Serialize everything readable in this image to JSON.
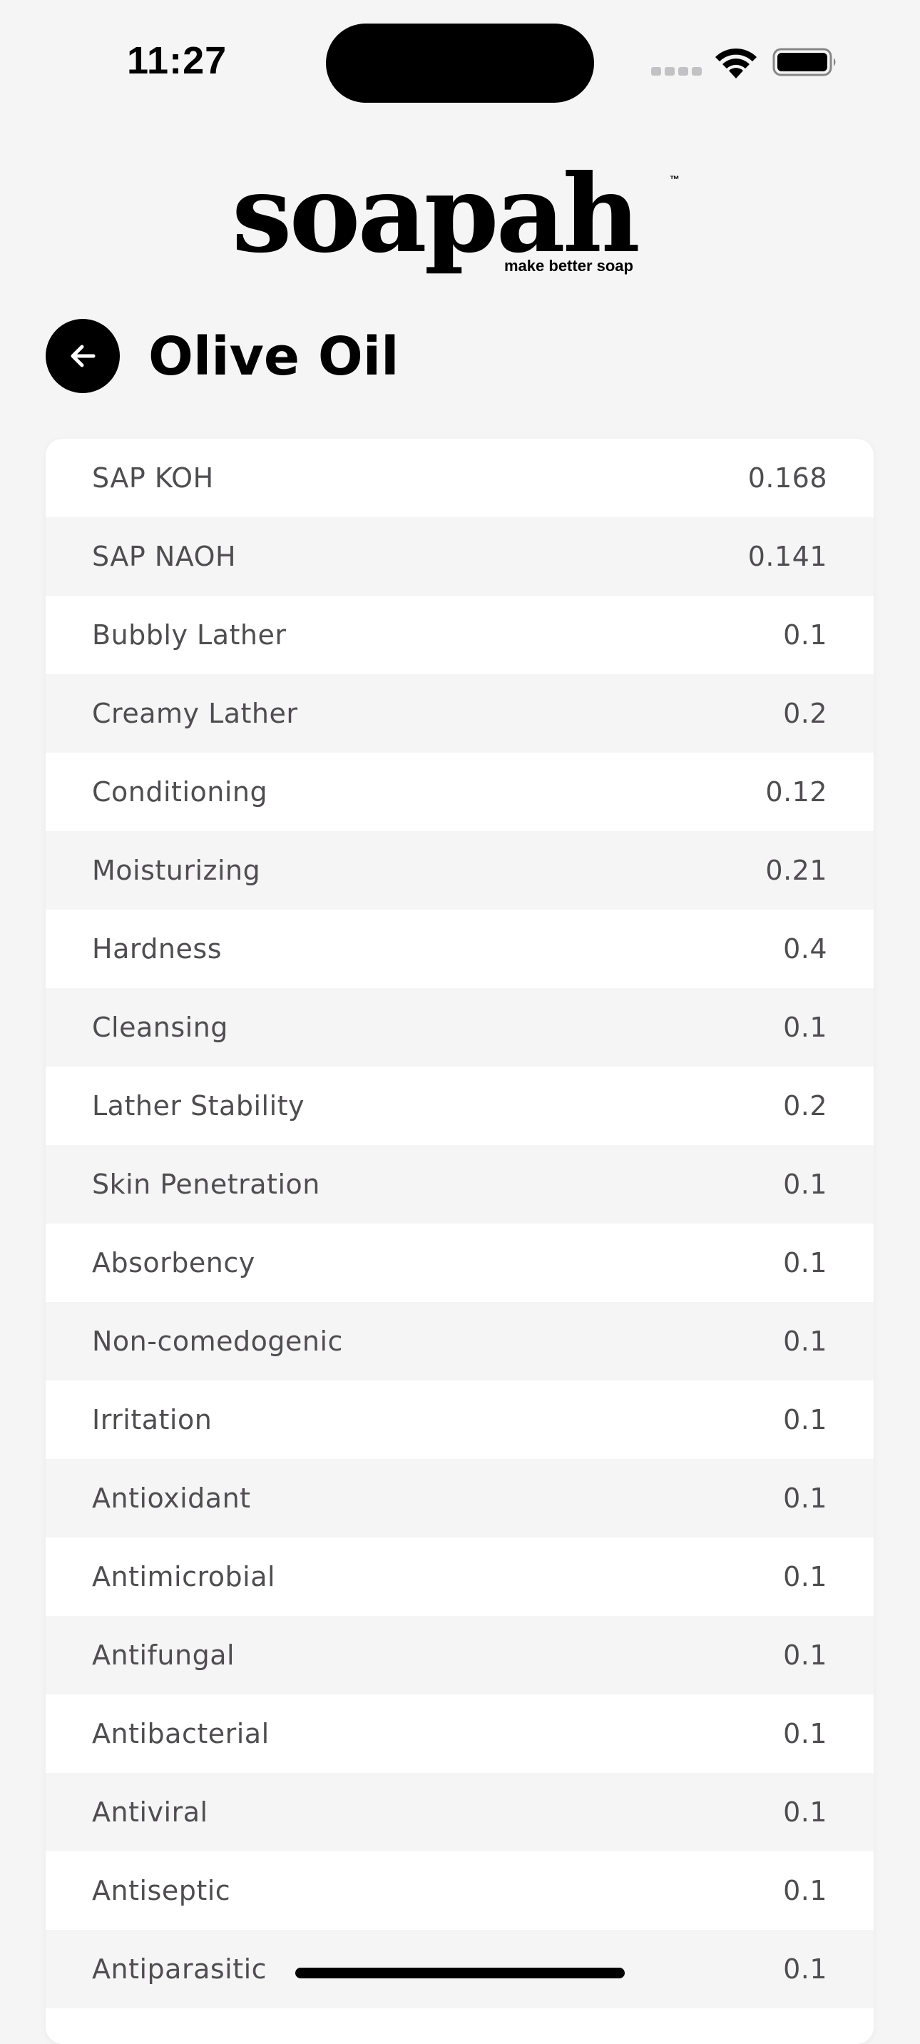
{
  "status_bar": {
    "time": "11:27"
  },
  "logo": {
    "wordmark": "soapah",
    "trademark": "™",
    "tagline": "make better soap"
  },
  "header": {
    "title": "Olive Oil",
    "back_icon": "arrow-left-icon"
  },
  "properties": [
    {
      "label": "SAP KOH",
      "value": "0.168"
    },
    {
      "label": "SAP NAOH",
      "value": "0.141"
    },
    {
      "label": "Bubbly Lather",
      "value": "0.1"
    },
    {
      "label": "Creamy Lather",
      "value": "0.2"
    },
    {
      "label": "Conditioning",
      "value": "0.12"
    },
    {
      "label": "Moisturizing",
      "value": "0.21"
    },
    {
      "label": "Hardness",
      "value": "0.4"
    },
    {
      "label": "Cleansing",
      "value": "0.1"
    },
    {
      "label": "Lather Stability",
      "value": "0.2"
    },
    {
      "label": "Skin Penetration",
      "value": "0.1"
    },
    {
      "label": "Absorbency",
      "value": "0.1"
    },
    {
      "label": "Non-comedogenic",
      "value": "0.1"
    },
    {
      "label": "Irritation",
      "value": "0.1"
    },
    {
      "label": "Antioxidant",
      "value": "0.1"
    },
    {
      "label": "Antimicrobial",
      "value": "0.1"
    },
    {
      "label": "Antifungal",
      "value": "0.1"
    },
    {
      "label": "Antibacterial",
      "value": "0.1"
    },
    {
      "label": "Antiviral",
      "value": "0.1"
    },
    {
      "label": "Antiseptic",
      "value": "0.1"
    },
    {
      "label": "Antiparasitic",
      "value": "0.1"
    }
  ],
  "colors": {
    "background": "#f6f5f6",
    "row_alt": "#f6f5f6",
    "row": "#ffffff",
    "text": "#4f4d50",
    "accent": "#000000"
  }
}
